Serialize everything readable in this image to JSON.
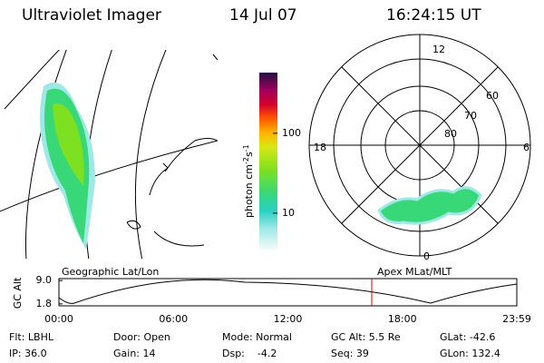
{
  "header": {
    "title": "Ultraviolet Imager",
    "date": "14 Jul 07",
    "time": "16:24:15 UT"
  },
  "colorbar": {
    "label": "photon cm",
    "exp1": "-2",
    "unit2": "s",
    "exp2": "-1",
    "lim": [
      3.5,
      575
    ],
    "ticks": [
      10,
      100
    ],
    "log": true
  },
  "polar": {
    "mlt_labels": [
      "12",
      "6",
      "0",
      "18"
    ],
    "lat_labels": [
      60,
      70,
      80
    ]
  },
  "timeline": {
    "left_label": "Geographic Lat/Lon",
    "right_label": "Apex MLat/MLT",
    "y_label": "GC Alt",
    "yticks": [
      {
        "value": 9,
        "label": "9.0"
      },
      1.8
    ],
    "xticks": [
      "00:00",
      "06:00",
      "12:00",
      "18:00",
      "23:59"
    ]
  },
  "info": [
    [
      "Flt: LBHL",
      "Door: Open",
      "Mode: Normal",
      "GC Alt: 5.5 Re",
      "GLat: -42.6"
    ],
    [
      "IP: 36.0",
      "Gain: 14",
      "Dsp:    -4.2",
      "Seq: 39",
      "GLon: 132.4"
    ]
  ]
}
